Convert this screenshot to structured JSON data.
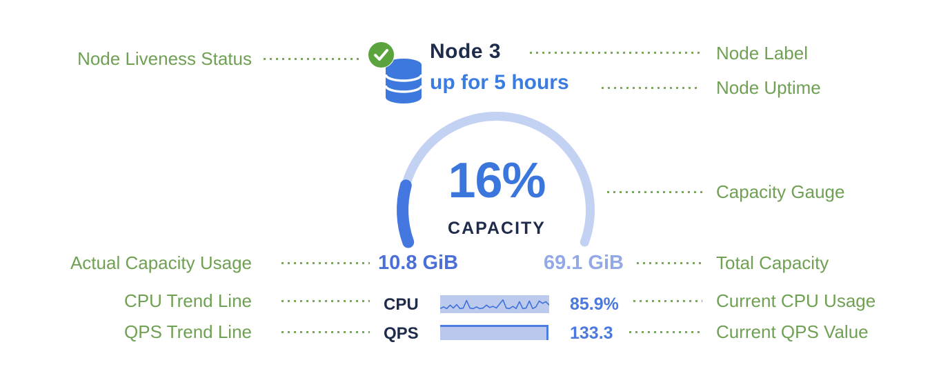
{
  "colors": {
    "annotation_green": "#6fa053",
    "dotted_line_green": "#7aa75c",
    "heading_navy": "#1e2b4b",
    "primary_blue": "#3b76dd",
    "gauge_track": "#c3d2f2",
    "gauge_fill": "#4478e0",
    "used_capacity_blue": "#4a6fd8",
    "total_capacity_blue": "#93a9e6",
    "status_green": "#5ba33c",
    "database_icon_blue": "#3d79dd"
  },
  "annotations": {
    "left": [
      {
        "label": "Node Liveness Status"
      },
      {
        "label": "Actual Capacity Usage"
      },
      {
        "label": "CPU Trend Line"
      },
      {
        "label": "QPS Trend Line"
      }
    ],
    "right": [
      {
        "label": "Node Label"
      },
      {
        "label": "Node Uptime"
      },
      {
        "label": "Capacity Gauge"
      },
      {
        "label": "Total Capacity"
      },
      {
        "label": "Current CPU Usage"
      },
      {
        "label": "Current QPS Value"
      }
    ]
  },
  "node": {
    "label": "Node 3",
    "uptime": "up for 5 hours",
    "liveness": "live"
  },
  "gauge": {
    "percent": 16,
    "percent_label": "16%",
    "caption": "CAPACITY",
    "used_label": "10.8 GiB",
    "total_label": "69.1 GiB"
  },
  "metrics": {
    "cpu": {
      "label": "CPU",
      "value": "85.9%",
      "trend_points": [
        0.15,
        0.3,
        0.15,
        0.45,
        0.2,
        0.5,
        0.15,
        0.2,
        0.85,
        0.2,
        0.15,
        0.3,
        0.15,
        0.2,
        0.45,
        0.25,
        0.35,
        0.2,
        0.55,
        0.9,
        0.2,
        0.15,
        0.35,
        0.15,
        0.75,
        0.15,
        0.2,
        0.8,
        0.15,
        0.3,
        0.8,
        0.6,
        0.75,
        0.45
      ]
    },
    "qps": {
      "label": "QPS",
      "value": "133.3",
      "trend_shape": "flat-bar"
    }
  }
}
